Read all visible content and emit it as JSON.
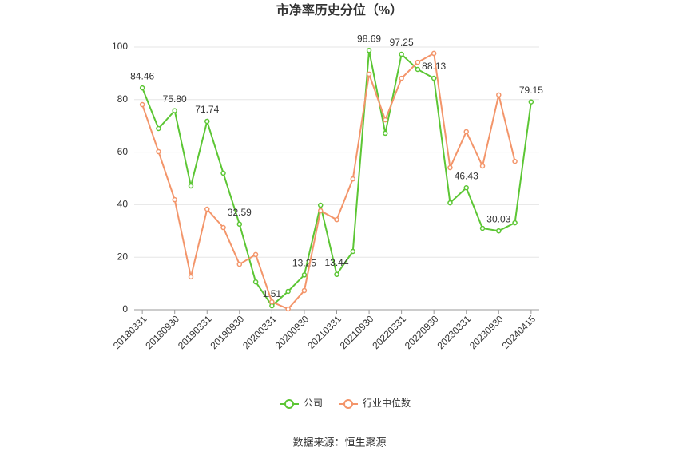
{
  "chart_data": {
    "type": "line",
    "title": "市净率历史分位（%）",
    "categories": [
      "20180331",
      null,
      "20180930",
      null,
      "20190331",
      null,
      "20190930",
      null,
      "20200331",
      null,
      "20200930",
      null,
      "20210331",
      null,
      "20210930",
      null,
      "20220331",
      null,
      "20220930",
      null,
      "20230331",
      null,
      "20230930",
      null,
      "20240415"
    ],
    "series": [
      {
        "name": "公司",
        "color": "#5cc634",
        "values": [
          84.46,
          69.0,
          75.8,
          47.1,
          71.74,
          52.0,
          32.59,
          10.6,
          1.51,
          7.0,
          13.25,
          39.8,
          13.44,
          22.2,
          98.69,
          67.2,
          97.25,
          91.5,
          88.13,
          40.7,
          46.43,
          31.0,
          30.03,
          33.1,
          79.15
        ],
        "value_labels": [
          "84.46",
          null,
          "75.80",
          null,
          "71.74",
          null,
          "32.59",
          null,
          "1.51",
          null,
          "13.25",
          null,
          "13.44",
          null,
          "98.69",
          null,
          "97.25",
          null,
          "88.13",
          null,
          "46.43",
          null,
          "30.03",
          null,
          "79.15"
        ]
      },
      {
        "name": "行业中位数",
        "color": "#f3956a",
        "values": [
          78.1,
          60.2,
          41.9,
          12.5,
          38.3,
          31.3,
          17.3,
          21.0,
          3.0,
          0.3,
          7.3,
          37.7,
          34.3,
          49.8,
          89.7,
          72.3,
          88.1,
          94.2,
          97.6,
          54.1,
          67.8,
          54.7,
          81.8,
          56.5,
          null
        ]
      }
    ],
    "ylim": [
      0,
      100
    ],
    "yticks": [
      0,
      20,
      40,
      60,
      80,
      100
    ],
    "grid": true,
    "source": "数据来源：恒生聚源"
  }
}
